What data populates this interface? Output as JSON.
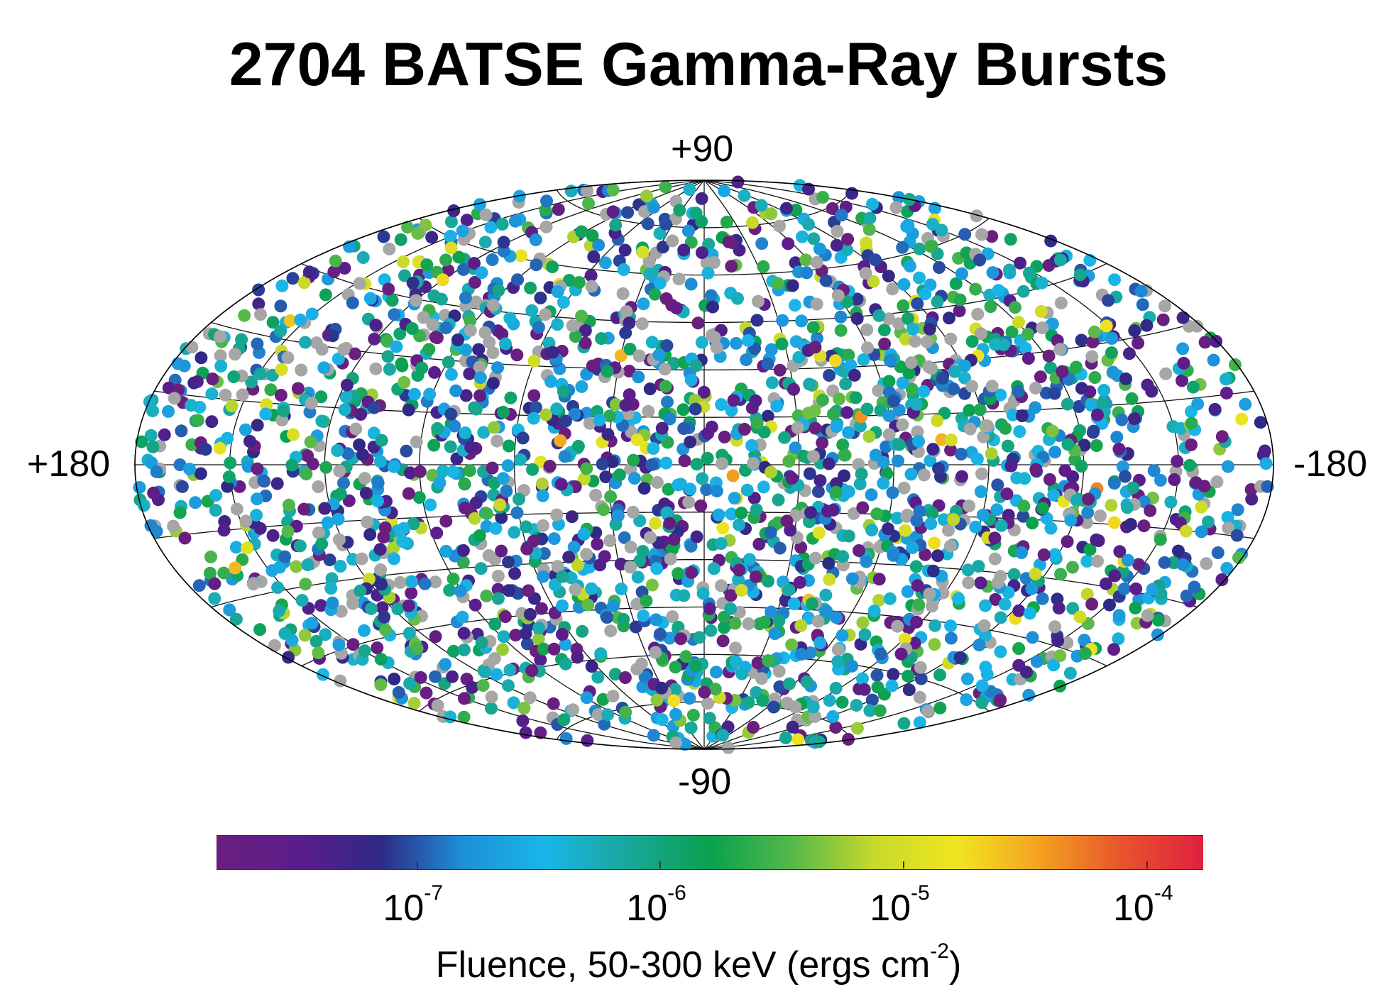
{
  "chart_data": {
    "type": "scatter",
    "title": "2704 BATSE Gamma-Ray Bursts",
    "projection": "Aitoff all-sky",
    "axis_labels": {
      "top": "+90",
      "bottom": "-90",
      "left": "+180",
      "right": "-180"
    },
    "longitude_range": [
      180,
      -180
    ],
    "latitude_range": [
      -90,
      90
    ],
    "n_points": 2704,
    "colorbar": {
      "label_prefix": "Fluence, 50-300 keV (ergs cm",
      "label_exp": "-2",
      "label_suffix": ")",
      "scale": "log",
      "range": [
        1.5e-08,
        0.00017
      ],
      "ticks": [
        {
          "base": "10",
          "exp": "-7",
          "value": 1e-07
        },
        {
          "base": "10",
          "exp": "-6",
          "value": 1e-06
        },
        {
          "base": "10",
          "exp": "-5",
          "value": 1e-05
        },
        {
          "base": "10",
          "exp": "-4",
          "value": 0.0001
        }
      ],
      "colors": [
        "#6a1f7e",
        "#5b1d8c",
        "#2e2a86",
        "#1e90d8",
        "#19b6e8",
        "#19a79a",
        "#0aa14f",
        "#55b84a",
        "#c8d92b",
        "#f0e51f",
        "#f4a322",
        "#e8542c",
        "#e0203f"
      ],
      "no_value_color": "#a6a6a6"
    },
    "grid": true
  }
}
